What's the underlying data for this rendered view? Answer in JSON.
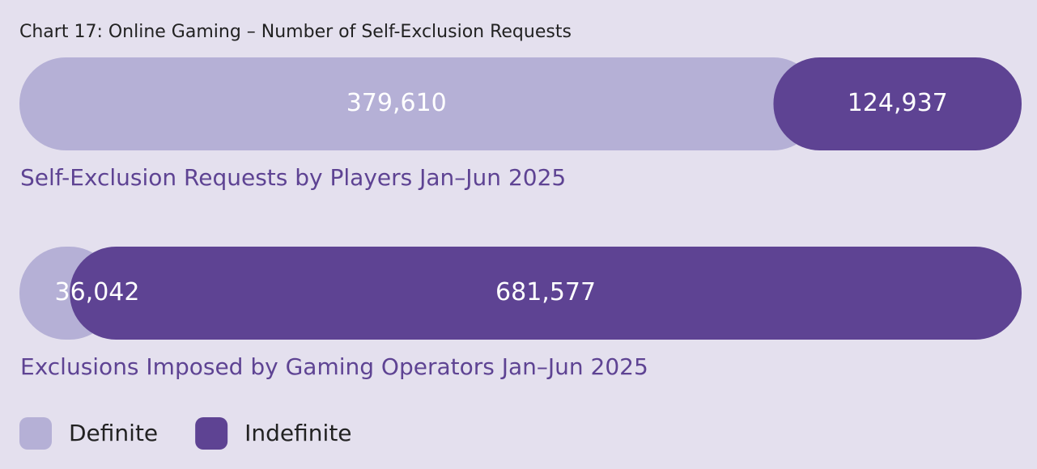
{
  "chart_data": {
    "type": "bar",
    "orientation": "horizontal",
    "stacked": "percent",
    "title": "Chart 17: Online Gaming – Number of Self-Exclusion Requests",
    "categories": [
      "Self-Exclusion Requests by Players Jan–Jun 2025",
      "Exclusions Imposed by Gaming Operators Jan–Jun 2025"
    ],
    "series": [
      {
        "name": "Definite",
        "color": "#b5b0d6",
        "values": [
          379610,
          36042
        ],
        "value_labels": [
          "379,610",
          "36,042"
        ]
      },
      {
        "name": "Indefinite",
        "color": "#5e4393",
        "values": [
          124937,
          681577
        ],
        "value_labels": [
          "124,937",
          "681,577"
        ]
      }
    ],
    "legend": "bottom-left"
  }
}
